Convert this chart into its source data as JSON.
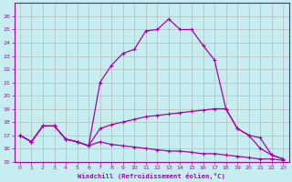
{
  "xlabel": "Windchill (Refroidissement éolien,°C)",
  "xlim": [
    -0.5,
    23.5
  ],
  "ylim": [
    15,
    27
  ],
  "xticks": [
    0,
    1,
    2,
    3,
    4,
    5,
    6,
    7,
    8,
    9,
    10,
    11,
    12,
    13,
    14,
    15,
    16,
    17,
    18,
    19,
    20,
    21,
    22,
    23
  ],
  "yticks": [
    15,
    16,
    17,
    18,
    19,
    20,
    21,
    22,
    23,
    24,
    25,
    26
  ],
  "background_color": "#c6eef0",
  "grid_color": "#b0b0b0",
  "line_color": "#aa00aa",
  "line1_x": [
    0,
    1,
    2,
    3,
    4,
    5,
    6,
    7,
    8,
    9,
    10,
    11,
    12,
    13,
    14,
    15,
    16,
    17,
    18,
    19,
    20,
    21,
    22,
    23
  ],
  "line1_y": [
    17.0,
    16.5,
    17.7,
    17.7,
    16.7,
    16.5,
    16.2,
    21.0,
    22.3,
    23.2,
    23.5,
    24.9,
    25.0,
    25.8,
    25.0,
    25.0,
    23.8,
    22.7,
    19.0,
    17.5,
    17.0,
    16.0,
    15.5,
    15.2
  ],
  "line2_x": [
    0,
    1,
    2,
    3,
    4,
    5,
    6,
    7,
    8,
    9,
    10,
    11,
    12,
    13,
    14,
    15,
    16,
    17,
    18,
    19,
    20,
    21,
    22,
    23
  ],
  "line2_y": [
    17.0,
    16.5,
    17.7,
    17.7,
    16.7,
    16.5,
    16.2,
    17.5,
    17.8,
    18.0,
    18.2,
    18.4,
    18.5,
    18.6,
    18.7,
    18.8,
    18.9,
    19.0,
    19.0,
    17.5,
    17.0,
    16.8,
    15.5,
    15.2
  ],
  "line3_x": [
    0,
    1,
    2,
    3,
    4,
    5,
    6,
    7,
    8,
    9,
    10,
    11,
    12,
    13,
    14,
    15,
    16,
    17,
    18,
    19,
    20,
    21,
    22,
    23
  ],
  "line3_y": [
    17.0,
    16.5,
    17.7,
    17.7,
    16.7,
    16.5,
    16.2,
    16.5,
    16.3,
    16.2,
    16.1,
    16.0,
    15.9,
    15.8,
    15.8,
    15.7,
    15.6,
    15.6,
    15.5,
    15.4,
    15.3,
    15.2,
    15.2,
    15.1
  ]
}
